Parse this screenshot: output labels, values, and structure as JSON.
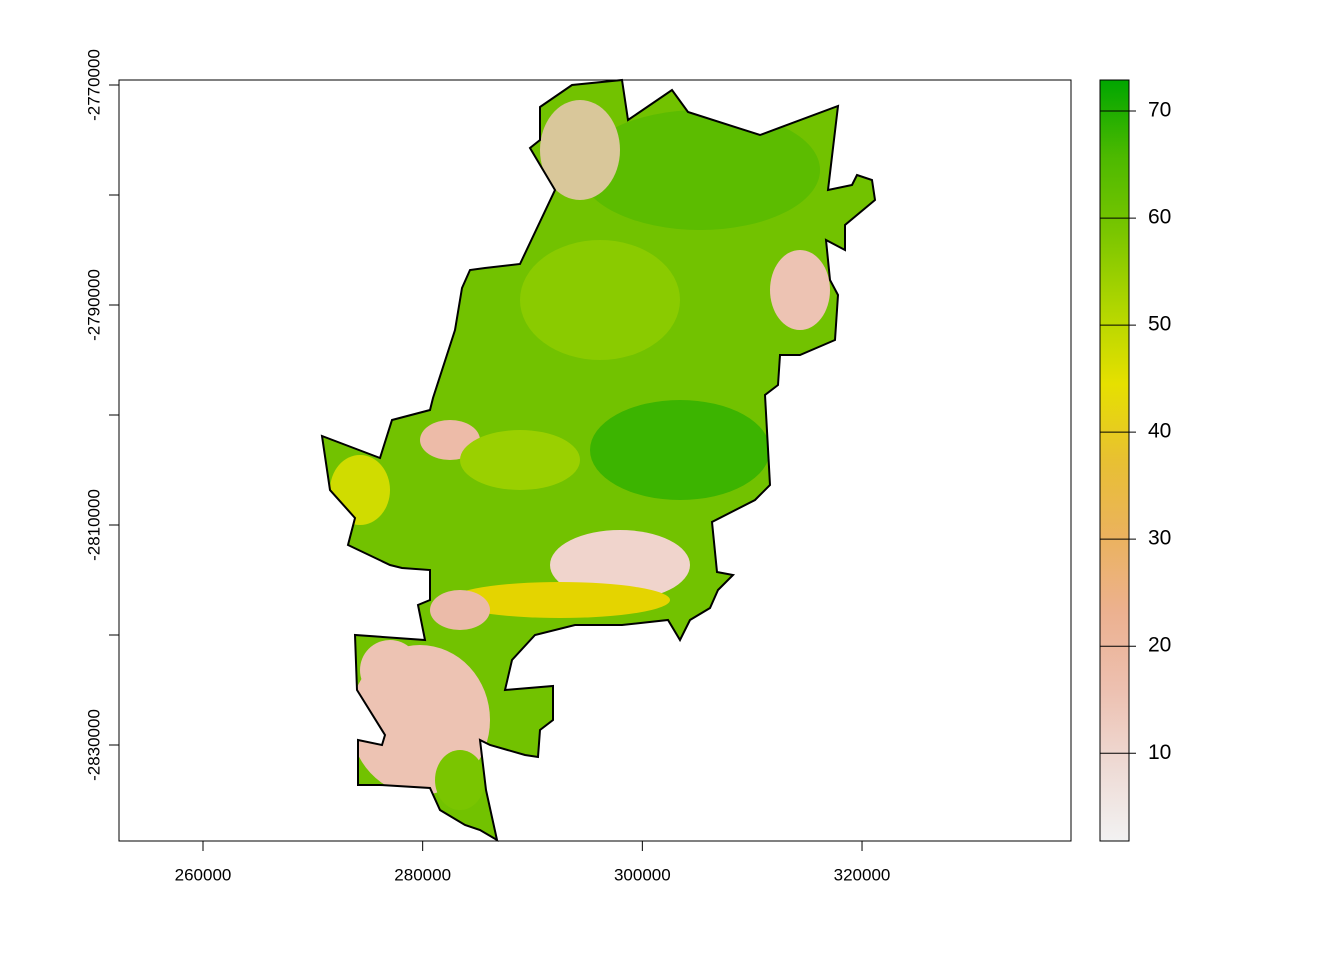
{
  "chart_data": {
    "type": "raster_map",
    "xlim": [
      252353,
      339026
    ],
    "xticks": [
      260000,
      280000,
      300000,
      320000
    ],
    "ylim": [
      -2838727,
      -2769545
    ],
    "yticks": [
      -2770000,
      -2790000,
      -2810000,
      -2830000
    ],
    "yminor_ticks": [
      -2780000,
      -2800000,
      -2820000
    ],
    "colorbar": {
      "lim": [
        1.8,
        72.9
      ],
      "ticks": [
        10,
        20,
        30,
        40,
        50,
        60,
        70
      ],
      "colors": [
        "#f2f2f2",
        "#eedad4",
        "#edc0b0",
        "#ecb190",
        "#ebb25e",
        "#e8c032",
        "#e6e000",
        "#b0d600",
        "#7ac600",
        "#4cb900",
        "#00a600"
      ]
    }
  }
}
